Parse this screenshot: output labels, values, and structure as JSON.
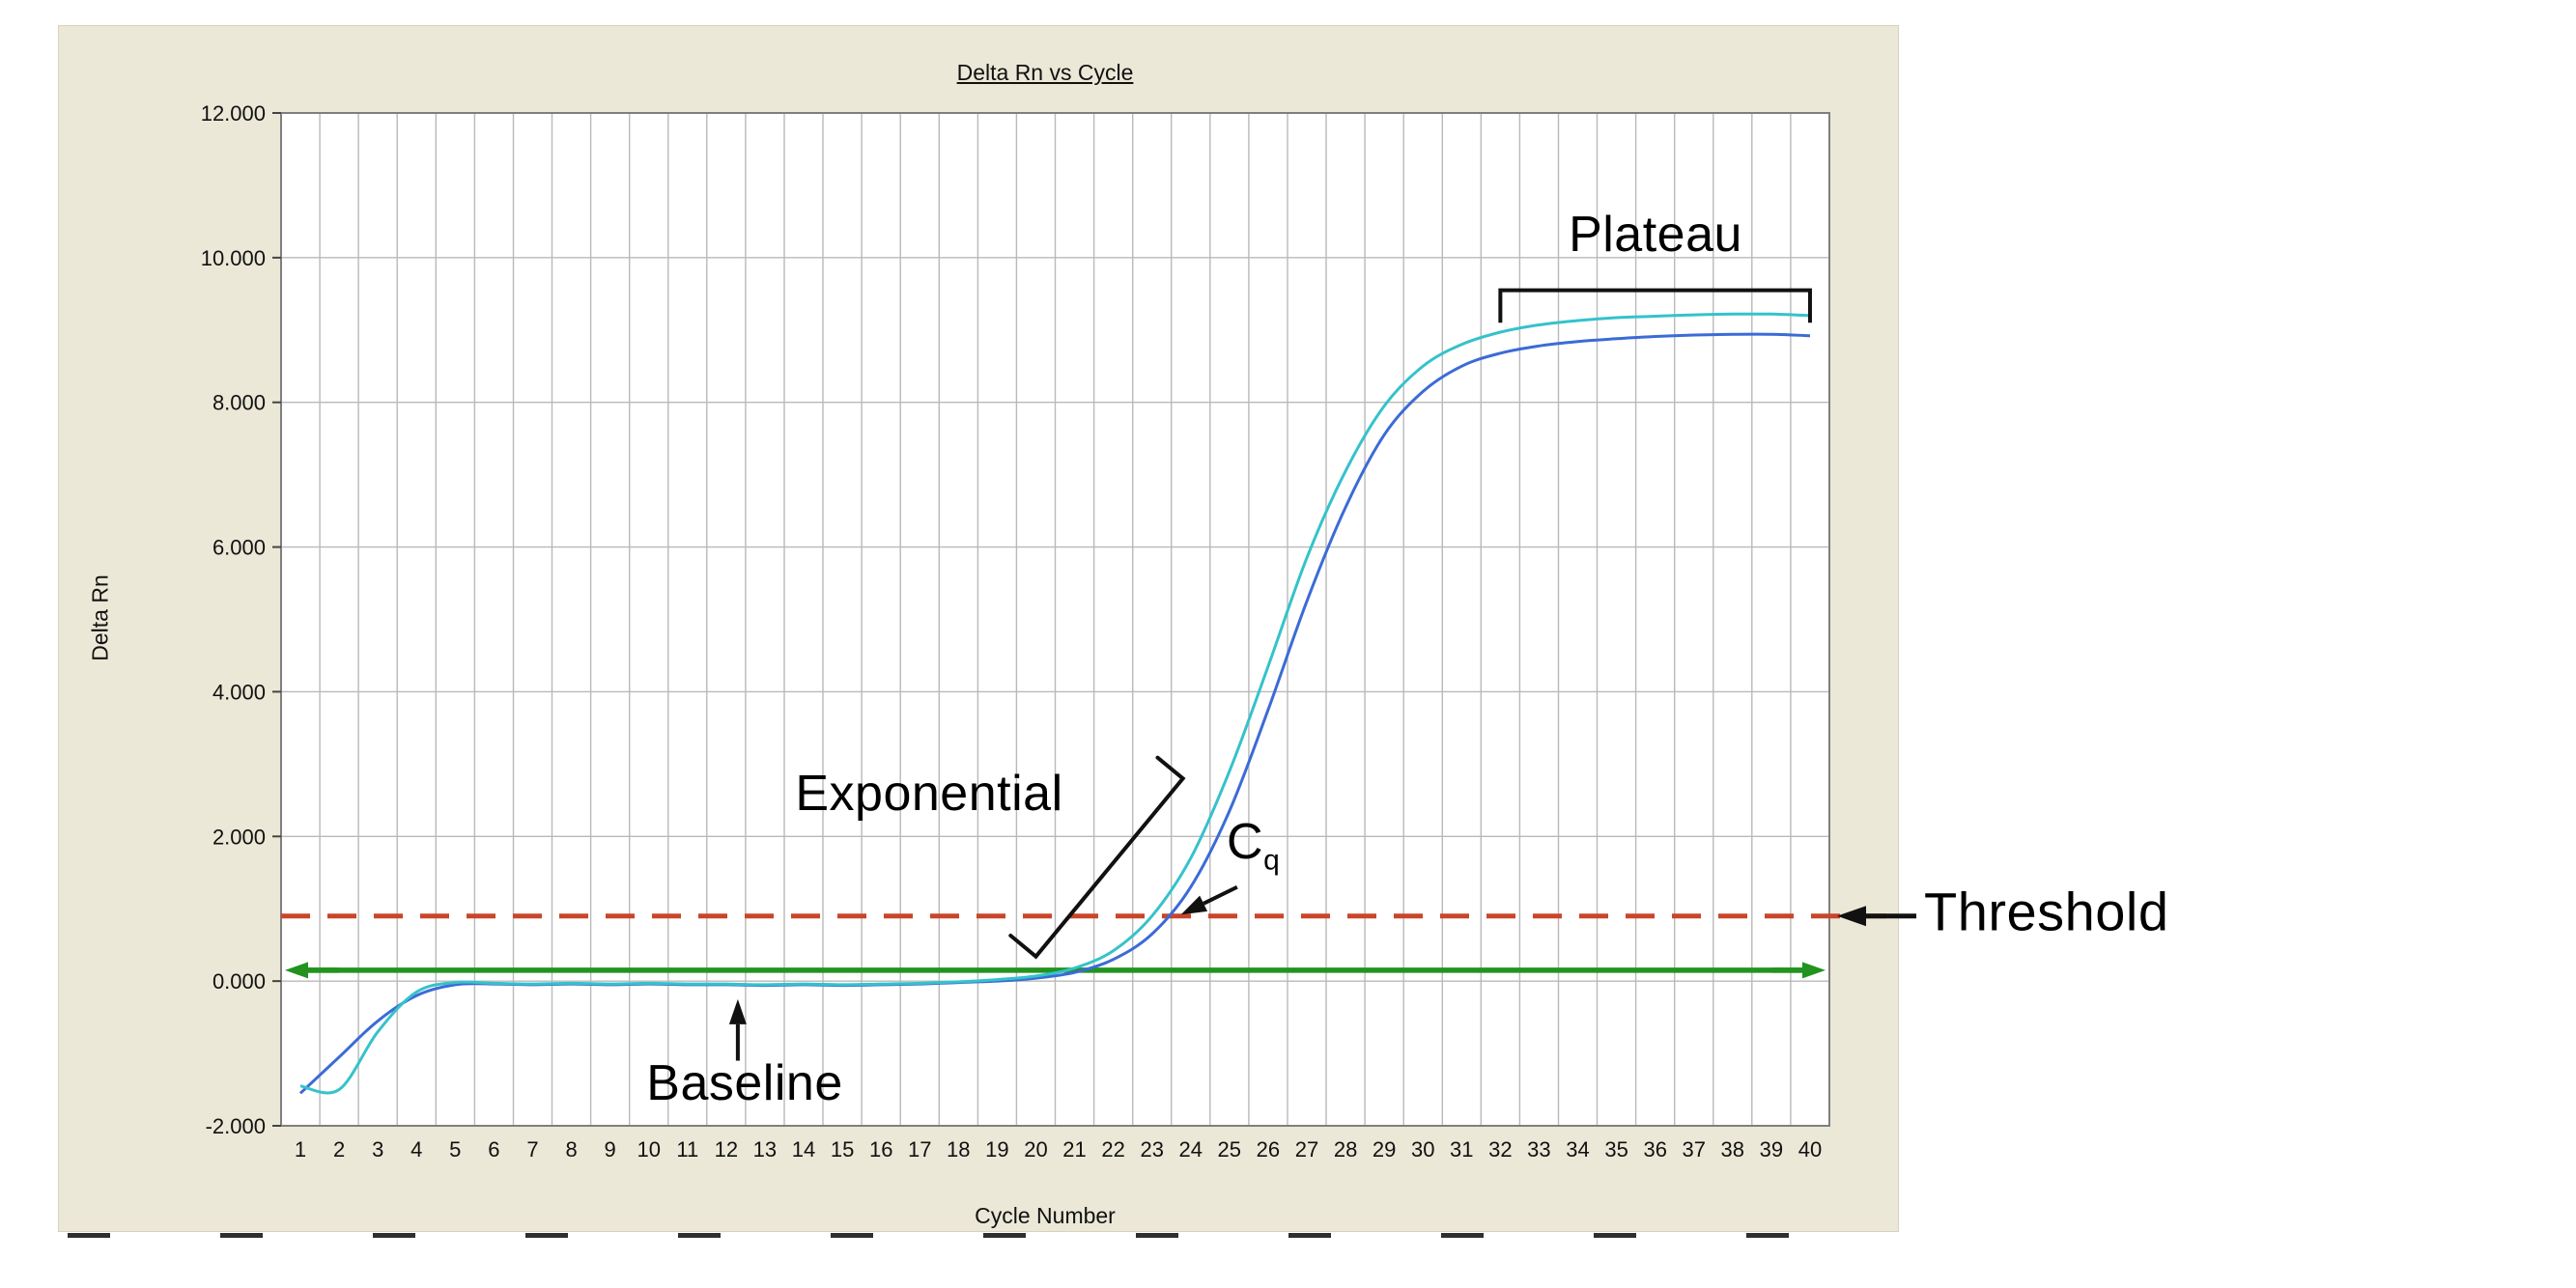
{
  "panel": {
    "background": "#ebe8d7"
  },
  "chart_data": {
    "type": "line",
    "title": "Delta Rn vs Cycle",
    "xlabel": "Cycle Number",
    "ylabel": "Delta Rn",
    "xlim": [
      0.5,
      40.5
    ],
    "ylim": [
      -2,
      12
    ],
    "grid": true,
    "gridline_color": "#b9b9b9",
    "plot_background": "#ffffff",
    "x_ticks": [
      1,
      2,
      3,
      4,
      5,
      6,
      7,
      8,
      9,
      10,
      11,
      12,
      13,
      14,
      15,
      16,
      17,
      18,
      19,
      20,
      21,
      22,
      23,
      24,
      25,
      26,
      27,
      28,
      29,
      30,
      31,
      32,
      33,
      34,
      35,
      36,
      37,
      38,
      39,
      40
    ],
    "y_ticks": [
      {
        "value": 12,
        "label": "12.000"
      },
      {
        "value": 10,
        "label": "10.000"
      },
      {
        "value": 8,
        "label": "8.000"
      },
      {
        "value": 6,
        "label": "6.000"
      },
      {
        "value": 4,
        "label": "4.000"
      },
      {
        "value": 2,
        "label": "2.000"
      },
      {
        "value": 0,
        "label": "0.000"
      },
      {
        "value": -2,
        "label": "-2.000"
      }
    ],
    "series": [
      {
        "name": "amplification-curve-blue",
        "color": "#3b6bd6",
        "values": [
          -1.55,
          -1.05,
          -0.55,
          -0.2,
          -0.05,
          -0.04,
          -0.05,
          -0.04,
          -0.05,
          -0.04,
          -0.05,
          -0.05,
          -0.06,
          -0.05,
          -0.06,
          -0.05,
          -0.04,
          -0.02,
          0.0,
          0.04,
          0.12,
          0.3,
          0.65,
          1.3,
          2.35,
          3.75,
          5.25,
          6.55,
          7.55,
          8.15,
          8.5,
          8.68,
          8.78,
          8.84,
          8.88,
          8.91,
          8.93,
          8.94,
          8.94,
          8.92
        ]
      },
      {
        "name": "amplification-curve-cyan",
        "color": "#35c2cb",
        "values": [
          -1.45,
          -1.5,
          -0.7,
          -0.15,
          -0.02,
          -0.03,
          -0.04,
          -0.03,
          -0.04,
          -0.03,
          -0.04,
          -0.04,
          -0.05,
          -0.04,
          -0.05,
          -0.04,
          -0.03,
          -0.01,
          0.02,
          0.07,
          0.18,
          0.42,
          0.9,
          1.7,
          2.9,
          4.35,
          5.85,
          7.05,
          7.95,
          8.5,
          8.8,
          8.97,
          9.07,
          9.13,
          9.17,
          9.19,
          9.21,
          9.22,
          9.22,
          9.2
        ]
      }
    ],
    "threshold_line": {
      "value": 0.9,
      "color": "#c9452a",
      "style": "dashed",
      "label": "Threshold"
    },
    "baseline_line": {
      "value": 0.15,
      "color": "#22931f",
      "style": "solid-double-arrow",
      "label": "Baseline"
    },
    "annotations": {
      "plateau": {
        "label": "Plateau",
        "from_cycle": 32,
        "to_cycle": 40,
        "value": 9.55,
        "tick_drop": 0.45
      },
      "exponential": {
        "label": "Exponential",
        "from": {
          "cycle": 20.0,
          "value": 0.34
        },
        "to": {
          "cycle": 23.8,
          "value": 2.8
        }
      },
      "cq": {
        "label": "C",
        "subscript": "q",
        "arrow_from": {
          "cycle": 25.2,
          "value": 1.3
        },
        "arrow_to": {
          "cycle": 23.75,
          "value": 0.92
        }
      },
      "baseline": {
        "label": "Baseline",
        "arrow_from": {
          "cycle": 12.3,
          "value": -1.1
        },
        "arrow_to": {
          "cycle": 12.3,
          "value": -0.25
        }
      },
      "threshold": {
        "arrow_y_value": 0.9
      }
    }
  }
}
